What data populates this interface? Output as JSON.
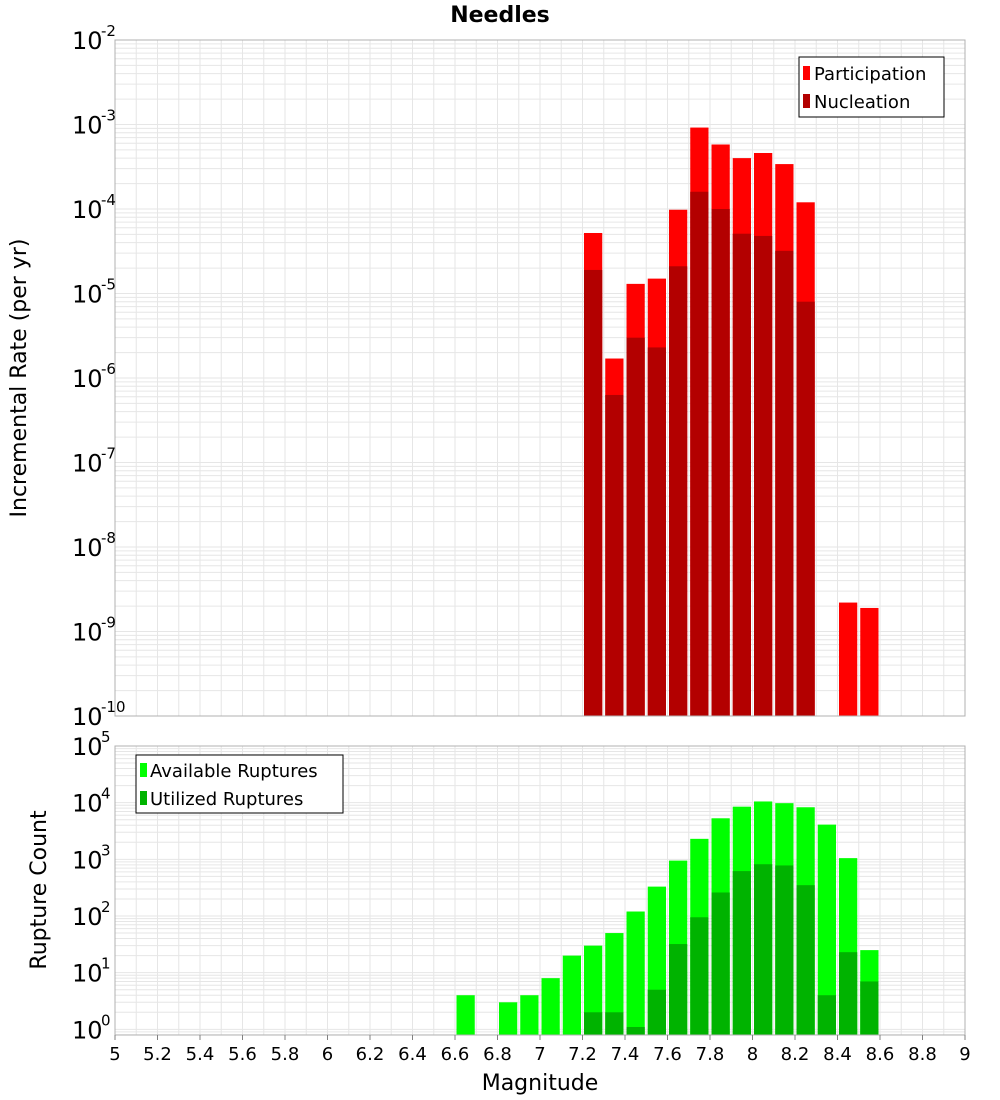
{
  "colors": {
    "participation": "#ff0000",
    "nucleation": "#b30000",
    "available": "#00ff00",
    "utilized": "#00b300",
    "grid": "#e6e6e6",
    "frame": "#b0b0b0"
  },
  "xaxis": {
    "label": "Magnitude",
    "range": [
      5,
      9
    ],
    "ticks": [
      "5",
      "5.2",
      "5.4",
      "5.6",
      "5.8",
      "6",
      "6.2",
      "6.4",
      "6.6",
      "6.8",
      "7",
      "7.2",
      "7.4",
      "7.6",
      "7.8",
      "8",
      "8.2",
      "8.4",
      "8.6",
      "8.8",
      "9"
    ]
  },
  "chart_data": [
    {
      "type": "bar",
      "title": "Needles",
      "ylabel": "Incremental Rate (per yr)",
      "xlabel": "",
      "yscale": "log",
      "ylim_exp": [
        -10,
        -2
      ],
      "ytick_base": "10",
      "ytick_exponents": [
        "-2",
        "-3",
        "-4",
        "-5",
        "-6",
        "-7",
        "-8",
        "-9",
        "-10"
      ],
      "legend": {
        "position": "top-right",
        "entries": [
          "Participation",
          "Nucleation"
        ]
      },
      "bin_width": 0.1,
      "x": [
        7.25,
        7.35,
        7.45,
        7.55,
        7.65,
        7.75,
        7.85,
        7.95,
        8.05,
        8.15,
        8.25,
        8.45,
        8.55
      ],
      "series": [
        {
          "name": "Participation",
          "values": [
            5.2e-05,
            1.7e-06,
            1.3e-05,
            1.5e-05,
            9.8e-05,
            0.00092,
            0.00058,
            0.0004,
            0.00046,
            0.00034,
            0.00012,
            2.2e-09,
            1.9e-09
          ]
        },
        {
          "name": "Nucleation",
          "values": [
            1.9e-05,
            6.3e-07,
            3e-06,
            2.3e-06,
            2.1e-05,
            0.00016,
            0.0001,
            5.1e-05,
            4.8e-05,
            3.2e-05,
            8e-06,
            null,
            null
          ]
        }
      ]
    },
    {
      "type": "bar",
      "title": "",
      "ylabel": "Rupture Count",
      "xlabel": "Magnitude",
      "yscale": "log",
      "ylim_exp": [
        -0.1,
        5
      ],
      "ytick_base": "10",
      "ytick_exponents": [
        "5",
        "4",
        "3",
        "2",
        "1",
        "0"
      ],
      "legend": {
        "position": "top-left",
        "entries": [
          "Available Ruptures",
          "Utilized Ruptures"
        ]
      },
      "bin_width": 0.1,
      "x": [
        6.65,
        6.85,
        6.95,
        7.05,
        7.15,
        7.25,
        7.35,
        7.45,
        7.55,
        7.65,
        7.75,
        7.85,
        7.95,
        8.05,
        8.15,
        8.25,
        8.35,
        8.45,
        8.55
      ],
      "series": [
        {
          "name": "Available Ruptures",
          "values": [
            4,
            3,
            4,
            8,
            20,
            30,
            50,
            120,
            330,
            950,
            2300,
            5300,
            8500,
            10500,
            9800,
            8300,
            4100,
            1050,
            25
          ]
        },
        {
          "name": "Utilized Ruptures",
          "values": [
            null,
            null,
            null,
            null,
            null,
            2,
            2,
            1.1,
            5,
            32,
            95,
            260,
            620,
            820,
            780,
            350,
            4,
            23,
            7
          ]
        }
      ]
    }
  ]
}
